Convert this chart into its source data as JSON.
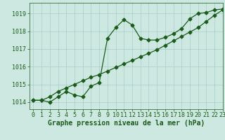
{
  "title": "Graphe pression niveau de la mer (hPa)",
  "background_color": "#cde8e0",
  "plot_bg_color": "#cde8e0",
  "line_color": "#1a5c1a",
  "grid_color": "#a8ccca",
  "xlim": [
    -0.5,
    23
  ],
  "ylim": [
    1013.6,
    1019.6
  ],
  "yticks": [
    1014,
    1015,
    1016,
    1017,
    1018,
    1019
  ],
  "xticks": [
    0,
    1,
    2,
    3,
    4,
    5,
    6,
    7,
    8,
    9,
    10,
    11,
    12,
    13,
    14,
    15,
    16,
    17,
    18,
    19,
    20,
    21,
    22,
    23
  ],
  "series1_x": [
    0,
    1,
    2,
    3,
    4,
    5,
    6,
    7,
    8,
    9,
    10,
    11,
    12,
    13,
    14,
    15,
    16,
    17,
    18,
    19,
    20,
    21,
    22,
    23
  ],
  "series1_y": [
    1014.1,
    1014.1,
    1014.0,
    1014.3,
    1014.6,
    1014.4,
    1014.3,
    1014.9,
    1015.1,
    1017.6,
    1018.2,
    1018.65,
    1018.35,
    1017.6,
    1017.5,
    1017.5,
    1017.65,
    1017.85,
    1018.15,
    1018.7,
    1019.0,
    1019.05,
    1019.2,
    1019.25
  ],
  "series2_x": [
    0,
    1,
    2,
    3,
    4,
    5,
    6,
    7,
    8,
    9,
    10,
    11,
    12,
    13,
    14,
    15,
    16,
    17,
    18,
    19,
    20,
    21,
    22,
    23
  ],
  "series2_y": [
    1014.1,
    1014.1,
    1014.3,
    1014.6,
    1014.8,
    1015.0,
    1015.2,
    1015.4,
    1015.55,
    1015.75,
    1015.95,
    1016.15,
    1016.35,
    1016.55,
    1016.75,
    1016.95,
    1017.2,
    1017.45,
    1017.7,
    1017.95,
    1018.2,
    1018.55,
    1018.9,
    1019.2
  ],
  "marker": "D",
  "marker_size": 2.5,
  "linewidth": 0.9,
  "xlabel_fontsize": 7,
  "tick_fontsize": 6,
  "label_color": "#1a5c1a"
}
